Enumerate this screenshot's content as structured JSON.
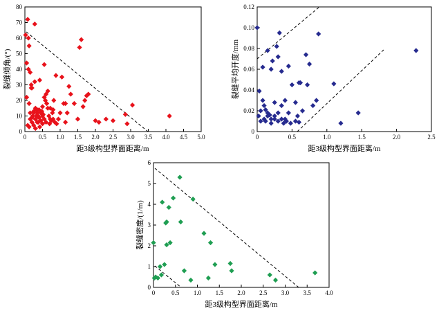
{
  "chart_data": [
    {
      "type": "scatter",
      "xlabel": "距3级构型界面距离/m",
      "ylabel": "裂缝倾角/(°)",
      "xlim": [
        0,
        5.0
      ],
      "ylim": [
        0,
        80
      ],
      "xticks": [
        "0",
        "0.5",
        "1.0",
        "1.5",
        "2.0",
        "2.5",
        "3.0",
        "3.5",
        "4.0",
        "4.5",
        "5.0"
      ],
      "yticks": [
        "0",
        "10",
        "20",
        "30",
        "40",
        "50",
        "60",
        "70",
        "80"
      ],
      "color": "#e8121b",
      "marker": "diamond",
      "x": [
        0.02,
        0.05,
        0.08,
        0.1,
        0.12,
        0.15,
        0.15,
        0.18,
        0.2,
        0.2,
        0.22,
        0.25,
        0.25,
        0.28,
        0.3,
        0.3,
        0.3,
        0.32,
        0.35,
        0.35,
        0.38,
        0.4,
        0.4,
        0.42,
        0.45,
        0.45,
        0.48,
        0.5,
        0.5,
        0.5,
        0.52,
        0.55,
        0.55,
        0.58,
        0.6,
        0.6,
        0.62,
        0.65,
        0.68,
        0.7,
        0.72,
        0.75,
        0.78,
        0.8,
        0.82,
        0.85,
        0.88,
        0.9,
        0.95,
        1.0,
        1.1,
        1.15,
        1.2,
        1.3,
        1.4,
        1.5,
        1.6,
        1.7,
        1.8,
        2.0,
        2.1,
        2.3,
        2.5,
        2.85,
        2.9,
        3.05,
        4.1,
        0.1,
        0.12,
        0.15,
        0.18,
        0.2,
        0.28,
        0.35,
        0.38,
        0.42,
        0.48,
        0.55,
        0.65,
        0.72,
        0.8,
        1.05,
        1.15,
        1.25,
        1.55,
        1.65,
        1.75,
        0.05,
        0.08,
        0.12,
        0.25,
        0.3,
        0.32
      ],
      "y": [
        62,
        44,
        72,
        60,
        55,
        38,
        12,
        30,
        28,
        6,
        10,
        4,
        13,
        32,
        2,
        8,
        15,
        10,
        14,
        12,
        6,
        9,
        14,
        3,
        12,
        7,
        13,
        10,
        5,
        16,
        11,
        8,
        22,
        20,
        6,
        24,
        18,
        15,
        10,
        5,
        8,
        7,
        12,
        14,
        20,
        6,
        36,
        5,
        8,
        12,
        18,
        6,
        12,
        24,
        18,
        8,
        59,
        20,
        24,
        7,
        6,
        8,
        7,
        11,
        5,
        17,
        10,
        40,
        18,
        8,
        28,
        9,
        69,
        6,
        10,
        33,
        12,
        43,
        26,
        15,
        8,
        35,
        18,
        29,
        54,
        16,
        23,
        22,
        4,
        3,
        12,
        8,
        14
      ]
    },
    {
      "type": "scatter",
      "xlabel": "距3级构型界面距离/m",
      "ylabel": "裂缝平均开度/mm",
      "xlim": [
        0,
        2.5
      ],
      "ylim": [
        0,
        0.12
      ],
      "xticks": [
        "0",
        "0.5",
        "1.0",
        "1.5",
        "2.0",
        "2.5"
      ],
      "yticks": [
        "0",
        "0.02",
        "0.04",
        "0.06",
        "0.08",
        "0.10",
        "0.12"
      ],
      "color": "#262b8f",
      "marker": "diamond",
      "x": [
        0.0,
        0.02,
        0.03,
        0.05,
        0.05,
        0.08,
        0.1,
        0.1,
        0.12,
        0.12,
        0.15,
        0.15,
        0.18,
        0.2,
        0.2,
        0.22,
        0.25,
        0.25,
        0.28,
        0.3,
        0.3,
        0.3,
        0.32,
        0.35,
        0.35,
        0.38,
        0.4,
        0.42,
        0.45,
        0.45,
        0.48,
        0.5,
        0.55,
        0.58,
        0.6,
        0.6,
        0.62,
        0.65,
        0.7,
        0.72,
        0.75,
        0.8,
        0.85,
        0.88,
        1.1,
        1.2,
        1.45,
        2.28,
        0.08,
        0.15,
        0.2,
        0.25,
        0.35,
        0.4,
        0.55
      ],
      "y": [
        0.1,
        0.015,
        0.039,
        0.01,
        0.02,
        0.062,
        0.012,
        0.025,
        0.01,
        0.021,
        0.078,
        0.015,
        0.016,
        0.008,
        0.06,
        0.068,
        0.028,
        0.012,
        0.082,
        0.072,
        0.01,
        0.018,
        0.095,
        0.058,
        0.012,
        0.008,
        0.03,
        0.01,
        0.063,
        0.018,
        0.008,
        0.045,
        0.028,
        0.015,
        0.047,
        0.009,
        0.047,
        0.02,
        0.074,
        0.045,
        0.065,
        0.025,
        0.03,
        0.094,
        0.046,
        0.008,
        0.018,
        0.078,
        0.03,
        0.018,
        0.012,
        0.015,
        0.025,
        0.012,
        0.01
      ]
    },
    {
      "type": "scatter",
      "xlabel": "距3级构型界面距离/m",
      "ylabel": "裂缝密度/(1/m)",
      "xlim": [
        0,
        4.0
      ],
      "ylim": [
        0,
        6
      ],
      "xticks": [
        "0",
        "0.5",
        "1.0",
        "1.5",
        "2.0",
        "2.5",
        "3.0",
        "3.5",
        "4.0"
      ],
      "yticks": [
        "0",
        "1",
        "2",
        "3",
        "4",
        "5",
        "6"
      ],
      "color": "#1f9e52",
      "marker": "diamond",
      "x": [
        0.0,
        0.02,
        0.05,
        0.1,
        0.15,
        0.18,
        0.2,
        0.25,
        0.28,
        0.3,
        0.3,
        0.35,
        0.38,
        0.45,
        0.6,
        0.62,
        0.7,
        0.85,
        0.9,
        1.15,
        1.25,
        1.3,
        1.4,
        1.75,
        1.78,
        2.65,
        2.78,
        3.68
      ],
      "y": [
        2.15,
        0.45,
        0.5,
        0.45,
        1.0,
        0.6,
        4.1,
        1.1,
        3.1,
        3.15,
        2.05,
        3.85,
        2.15,
        4.3,
        5.3,
        3.15,
        0.8,
        0.35,
        4.25,
        2.6,
        0.45,
        2.15,
        1.1,
        1.15,
        0.8,
        0.6,
        0.35,
        0.7
      ]
    }
  ]
}
